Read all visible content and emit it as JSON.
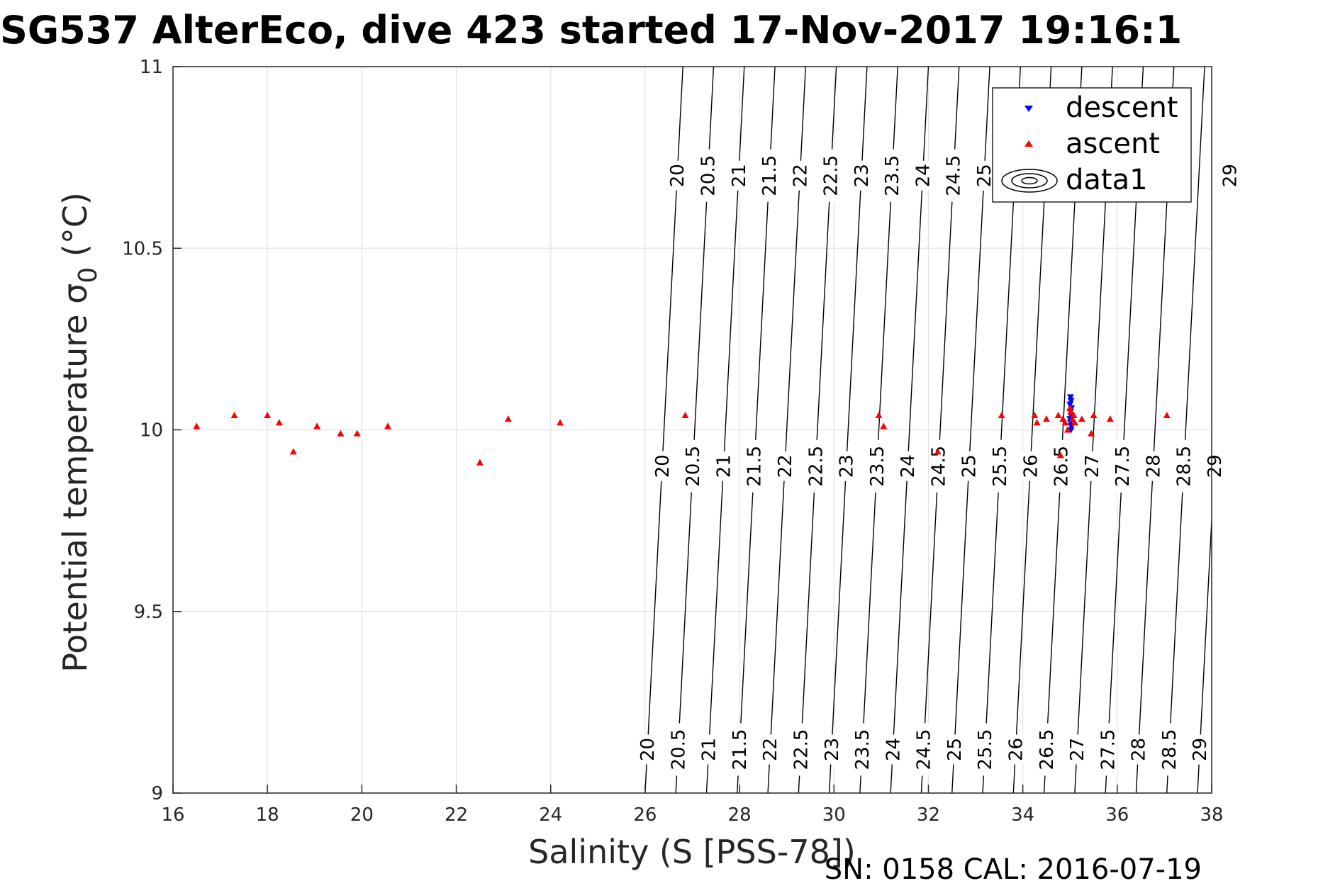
{
  "chart_data": {
    "type": "scatter",
    "title": "SG537 AlterEco, dive 423 started 17-Nov-2017 19:16:1",
    "xlabel": "Salinity (S [PSS-78])",
    "ylabel": "Potential temperature σ₀ (°C)",
    "ylabel_main": "Potential temperature σ",
    "ylabel_subscript": "0",
    "ylabel_unit": " (°C)",
    "xlim": [
      16,
      38
    ],
    "ylim": [
      9,
      11
    ],
    "xticks": [
      16,
      18,
      20,
      22,
      24,
      26,
      28,
      30,
      32,
      34,
      36,
      38
    ],
    "yticks": [
      9,
      9.5,
      10,
      10.5,
      11
    ],
    "grid": true,
    "legend_position": "top-right",
    "series": [
      {
        "name": "descent",
        "marker": "down-triangle",
        "color": "#0000ff",
        "points": [
          [
            35.01,
            10.09
          ],
          [
            35.02,
            10.08
          ],
          [
            35.0,
            10.07
          ],
          [
            35.03,
            10.06
          ],
          [
            35.01,
            10.05
          ],
          [
            35.02,
            10.04
          ],
          [
            35.0,
            10.03
          ],
          [
            35.01,
            10.02
          ],
          [
            35.03,
            10.01
          ],
          [
            35.02,
            10.0
          ]
        ]
      },
      {
        "name": "ascent",
        "marker": "up-triangle",
        "color": "#ff0000",
        "points": [
          [
            16.5,
            10.01
          ],
          [
            17.3,
            10.04
          ],
          [
            18.0,
            10.04
          ],
          [
            18.25,
            10.02
          ],
          [
            18.55,
            9.94
          ],
          [
            19.05,
            10.01
          ],
          [
            19.55,
            9.99
          ],
          [
            19.9,
            9.99
          ],
          [
            20.55,
            10.01
          ],
          [
            22.5,
            9.91
          ],
          [
            23.1,
            10.03
          ],
          [
            24.2,
            10.02
          ],
          [
            26.85,
            10.04
          ],
          [
            30.95,
            10.04
          ],
          [
            31.05,
            10.01
          ],
          [
            32.2,
            9.94
          ],
          [
            33.55,
            10.04
          ],
          [
            34.25,
            10.04
          ],
          [
            34.3,
            10.02
          ],
          [
            34.5,
            10.03
          ],
          [
            34.75,
            10.04
          ],
          [
            34.8,
            9.93
          ],
          [
            34.85,
            10.03
          ],
          [
            34.9,
            10.02
          ],
          [
            34.95,
            10.0
          ],
          [
            35.0,
            10.06
          ],
          [
            35.02,
            10.05
          ],
          [
            35.05,
            10.03
          ],
          [
            35.08,
            10.04
          ],
          [
            35.1,
            10.02
          ],
          [
            35.25,
            10.03
          ],
          [
            35.45,
            9.99
          ],
          [
            35.5,
            10.04
          ],
          [
            35.85,
            10.03
          ],
          [
            37.05,
            10.04
          ]
        ]
      },
      {
        "name": "data1",
        "type": "contour",
        "color": "#000000",
        "levels": [
          20,
          20.5,
          21,
          21.5,
          22,
          22.5,
          23,
          23.5,
          24,
          24.5,
          25,
          25.5,
          26,
          26.5,
          27,
          27.5,
          28,
          28.5,
          29
        ],
        "levels_labeled_upper": [
          20,
          20.5,
          21,
          21.5,
          22,
          22.5,
          23,
          23.5,
          24,
          24.5,
          25,
          25.5,
          29
        ],
        "level_salinity_at_9C": [
          26.0,
          26.65,
          27.3,
          27.95,
          28.6,
          29.25,
          29.9,
          30.55,
          31.2,
          31.85,
          32.5,
          33.15,
          33.8,
          34.45,
          35.1,
          35.75,
          36.4,
          37.05,
          37.7
        ],
        "salinity_shift_per_degree": 0.4
      }
    ],
    "legend": [
      {
        "label": "descent",
        "symbol": "down-triangle",
        "color": "#0000ff"
      },
      {
        "label": "ascent",
        "symbol": "up-triangle",
        "color": "#ff0000"
      },
      {
        "label": "data1",
        "symbol": "contour-ellipses",
        "color": "#000000"
      }
    ]
  },
  "footer": {
    "text": "SN: 0158  CAL: 2016-07-19"
  }
}
